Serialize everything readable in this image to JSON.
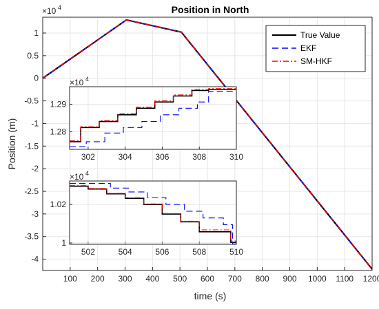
{
  "chart_data": {
    "type": "line",
    "title": "Position in North",
    "xlabel": "time (s)",
    "ylabel": "Position (m)",
    "exponent": {
      "base": "×10",
      "power": "4"
    },
    "xlim": [
      0,
      1200
    ],
    "ylim": [
      -4.25,
      1.35
    ],
    "xticks": [
      100,
      200,
      300,
      400,
      500,
      600,
      700,
      800,
      900,
      1000,
      1100,
      1200
    ],
    "yticks": [
      1,
      0.5,
      0,
      -0.5,
      -1,
      -1.5,
      -2,
      -2.5,
      -3,
      -3.5,
      -4
    ],
    "grid": true,
    "legend_position": "top-right",
    "colors": {
      "true_value": "#000000",
      "ekf": "#0000ff",
      "smhkf": "#ff0000"
    },
    "series": [
      {
        "name": "True Value",
        "style": "solid",
        "x": [
          0,
          305,
          505,
          1200
        ],
        "y": [
          0,
          1.29,
          1.02,
          -4.22
        ]
      },
      {
        "name": "EKF",
        "style": "dashed",
        "x": [
          0,
          305,
          505,
          1200
        ],
        "y": [
          0,
          1.29,
          1.02,
          -4.22
        ]
      },
      {
        "name": "SM-HKF",
        "style": "dashdot",
        "x": [
          0,
          305,
          505,
          1200
        ],
        "y": [
          0,
          1.29,
          1.02,
          -4.22
        ]
      }
    ],
    "insets": [
      {
        "xlim": [
          301,
          310
        ],
        "ylim": [
          1.2735,
          1.2965
        ],
        "xticks": [
          302,
          304,
          306,
          308,
          310
        ],
        "yticks": [
          1.29,
          1.28
        ],
        "exponent": {
          "base": "×10",
          "power": "4"
        },
        "series": [
          {
            "name": "True Value",
            "x": [
              301,
              301.6,
              301.6,
              302.6,
              302.6,
              303.6,
              303.6,
              304.6,
              304.6,
              305.6,
              305.6,
              306.6,
              306.6,
              307.6,
              307.6,
              308.5,
              308.5,
              310
            ],
            "y": [
              1.2763,
              1.2763,
              1.2815,
              1.2815,
              1.2837,
              1.2837,
              1.2862,
              1.2862,
              1.2886,
              1.2886,
              1.2909,
              1.2909,
              1.2931,
              1.2931,
              1.2951,
              1.2951,
              1.2955,
              1.2955
            ]
          },
          {
            "name": "EKF",
            "x": [
              301,
              301.9,
              301.9,
              302.9,
              302.9,
              303.9,
              303.9,
              304.9,
              304.9,
              305.9,
              305.9,
              306.9,
              306.9,
              307.9,
              307.9,
              308.5,
              308.5,
              310
            ],
            "y": [
              1.2745,
              1.2745,
              1.2763,
              1.2763,
              1.2795,
              1.2795,
              1.2815,
              1.2815,
              1.2837,
              1.2837,
              1.2862,
              1.2862,
              1.2886,
              1.2886,
              1.2909,
              1.2909,
              1.2948,
              1.2948
            ]
          },
          {
            "name": "SM-HKF",
            "x": [
              301,
              301.6,
              301.6,
              302.6,
              302.6,
              303.6,
              303.6,
              304.6,
              304.6,
              305.6,
              305.6,
              306.6,
              306.6,
              307.6,
              307.6,
              308.5,
              308.5,
              310
            ],
            "y": [
              1.2766,
              1.2766,
              1.2818,
              1.2818,
              1.2841,
              1.2841,
              1.2866,
              1.2866,
              1.289,
              1.289,
              1.2913,
              1.2913,
              1.2935,
              1.2935,
              1.2955,
              1.2955,
              1.2958,
              1.2958
            ]
          }
        ]
      },
      {
        "xlim": [
          501,
          510
        ],
        "ylim": [
          0.9993,
          1.0322
        ],
        "xticks": [
          502,
          504,
          506,
          508,
          510
        ],
        "yticks": [
          1.02,
          1
        ],
        "exponent": {
          "base": "×10",
          "power": "4"
        },
        "series": [
          {
            "name": "True Value",
            "x": [
              501,
              502,
              502,
              503,
              503,
              504,
              504,
              505,
              505,
              506,
              506,
              507,
              507,
              508,
              508,
              509.7,
              509.7,
              510
            ],
            "y": [
              1.0295,
              1.0295,
              1.028,
              1.028,
              1.0255,
              1.0255,
              1.0232,
              1.0232,
              1.02,
              1.02,
              1.015,
              1.015,
              1.011,
              1.011,
              1.0058,
              1.0058,
              1.0003,
              1.0003
            ]
          },
          {
            "name": "EKF",
            "x": [
              501,
              503.2,
              503.2,
              504.2,
              504.2,
              505.2,
              505.2,
              506.2,
              506.2,
              507.2,
              507.2,
              508.2,
              508.2,
              509.3,
              509.3,
              509.8,
              509.8,
              510
            ],
            "y": [
              1.031,
              1.031,
              1.0285,
              1.0285,
              1.0265,
              1.0265,
              1.0236,
              1.0236,
              1.02,
              1.02,
              1.0165,
              1.0165,
              1.013,
              1.013,
              1.0095,
              1.0095,
              0.9995,
              0.9995
            ]
          },
          {
            "name": "SM-HKF",
            "x": [
              501,
              502,
              502,
              503,
              503,
              504,
              504,
              505,
              505,
              506,
              506,
              507,
              507,
              508,
              508,
              509.7,
              509.7,
              510
            ],
            "y": [
              1.0298,
              1.0298,
              1.0283,
              1.0283,
              1.0258,
              1.0258,
              1.0235,
              1.0235,
              1.0203,
              1.0203,
              1.0153,
              1.0153,
              1.0113,
              1.0113,
              1.0068,
              1.0068,
              1.001,
              1.001
            ]
          }
        ]
      }
    ]
  }
}
